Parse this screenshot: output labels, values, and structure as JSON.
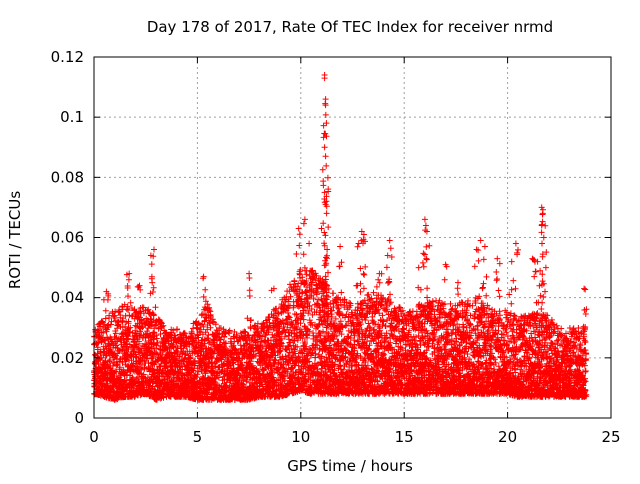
{
  "chart_data": {
    "type": "scatter",
    "title": "Day 178 of 2017, Rate Of TEC Index for receiver nrmd",
    "xlabel": "GPS time / hours",
    "ylabel": "ROTI / TECUs",
    "xlim": [
      0,
      25
    ],
    "ylim": [
      0,
      0.12
    ],
    "x_ticks": [
      "0",
      "5",
      "10",
      "15",
      "20",
      "25"
    ],
    "y_ticks": [
      "0",
      "0.02",
      "0.04",
      "0.06",
      "0.08",
      "0.1",
      "0.12"
    ],
    "grid": true,
    "legend": "none",
    "marker": "plus",
    "color": "#ff0000",
    "series": [
      {
        "x": [
          0.0,
          0.5,
          1.0,
          1.5,
          2.0,
          2.5,
          3.0,
          3.5,
          4.0,
          4.5,
          5.0,
          5.5,
          6.0,
          6.5,
          7.0,
          7.5,
          8.0,
          8.5,
          9.0,
          9.5,
          10.0,
          10.5,
          11.0,
          11.5,
          12.0,
          12.5,
          13.0,
          13.5,
          14.0,
          14.5,
          15.0,
          15.5,
          16.0,
          16.5,
          17.0,
          17.5,
          18.0,
          18.5,
          19.0,
          19.5,
          20.0,
          20.5,
          21.0,
          21.5,
          22.0,
          22.5,
          23.0,
          23.5
        ],
        "y_low": [
          0.008,
          0.007,
          0.006,
          0.007,
          0.007,
          0.008,
          0.006,
          0.007,
          0.007,
          0.007,
          0.006,
          0.006,
          0.006,
          0.006,
          0.006,
          0.006,
          0.007,
          0.007,
          0.007,
          0.008,
          0.009,
          0.008,
          0.008,
          0.008,
          0.008,
          0.008,
          0.008,
          0.008,
          0.008,
          0.008,
          0.008,
          0.008,
          0.008,
          0.008,
          0.008,
          0.008,
          0.008,
          0.008,
          0.008,
          0.008,
          0.008,
          0.007,
          0.007,
          0.007,
          0.007,
          0.007,
          0.007,
          0.007
        ],
        "y_high": [
          0.03,
          0.033,
          0.036,
          0.038,
          0.036,
          0.038,
          0.034,
          0.03,
          0.03,
          0.028,
          0.034,
          0.038,
          0.03,
          0.03,
          0.028,
          0.03,
          0.032,
          0.034,
          0.038,
          0.045,
          0.052,
          0.05,
          0.046,
          0.042,
          0.04,
          0.038,
          0.04,
          0.042,
          0.04,
          0.038,
          0.036,
          0.036,
          0.04,
          0.04,
          0.038,
          0.038,
          0.04,
          0.04,
          0.038,
          0.036,
          0.036,
          0.034,
          0.034,
          0.036,
          0.034,
          0.03,
          0.03,
          0.03
        ],
        "peaks": [
          {
            "x": 0.6,
            "y": 0.042
          },
          {
            "x": 1.7,
            "y": 0.048
          },
          {
            "x": 2.2,
            "y": 0.044
          },
          {
            "x": 2.75,
            "y": 0.054
          },
          {
            "x": 2.9,
            "y": 0.056
          },
          {
            "x": 5.3,
            "y": 0.047
          },
          {
            "x": 7.5,
            "y": 0.048
          },
          {
            "x": 8.7,
            "y": 0.043
          },
          {
            "x": 9.9,
            "y": 0.063
          },
          {
            "x": 10.2,
            "y": 0.066
          },
          {
            "x": 10.4,
            "y": 0.058
          },
          {
            "x": 11.0,
            "y": 0.063
          },
          {
            "x": 11.15,
            "y": 0.114
          },
          {
            "x": 11.15,
            "y": 0.113
          },
          {
            "x": 11.2,
            "y": 0.106
          },
          {
            "x": 11.2,
            "y": 0.104
          },
          {
            "x": 11.15,
            "y": 0.09
          },
          {
            "x": 11.2,
            "y": 0.087
          },
          {
            "x": 11.15,
            "y": 0.075
          },
          {
            "x": 11.2,
            "y": 0.071
          },
          {
            "x": 11.25,
            "y": 0.068
          },
          {
            "x": 11.9,
            "y": 0.057
          },
          {
            "x": 12.8,
            "y": 0.058
          },
          {
            "x": 12.95,
            "y": 0.062
          },
          {
            "x": 13.05,
            "y": 0.061
          },
          {
            "x": 13.8,
            "y": 0.048
          },
          {
            "x": 14.2,
            "y": 0.054
          },
          {
            "x": 14.3,
            "y": 0.059
          },
          {
            "x": 15.7,
            "y": 0.05
          },
          {
            "x": 16.0,
            "y": 0.066
          },
          {
            "x": 16.05,
            "y": 0.064
          },
          {
            "x": 16.1,
            "y": 0.062
          },
          {
            "x": 17.0,
            "y": 0.051
          },
          {
            "x": 17.6,
            "y": 0.045
          },
          {
            "x": 18.5,
            "y": 0.056
          },
          {
            "x": 18.7,
            "y": 0.059
          },
          {
            "x": 18.9,
            "y": 0.057
          },
          {
            "x": 19.5,
            "y": 0.053
          },
          {
            "x": 20.2,
            "y": 0.052
          },
          {
            "x": 20.4,
            "y": 0.058
          },
          {
            "x": 21.2,
            "y": 0.053
          },
          {
            "x": 21.45,
            "y": 0.052
          },
          {
            "x": 21.65,
            "y": 0.07
          },
          {
            "x": 21.7,
            "y": 0.068
          },
          {
            "x": 21.65,
            "y": 0.064
          },
          {
            "x": 21.75,
            "y": 0.06
          },
          {
            "x": 23.7,
            "y": 0.043
          }
        ]
      }
    ]
  }
}
